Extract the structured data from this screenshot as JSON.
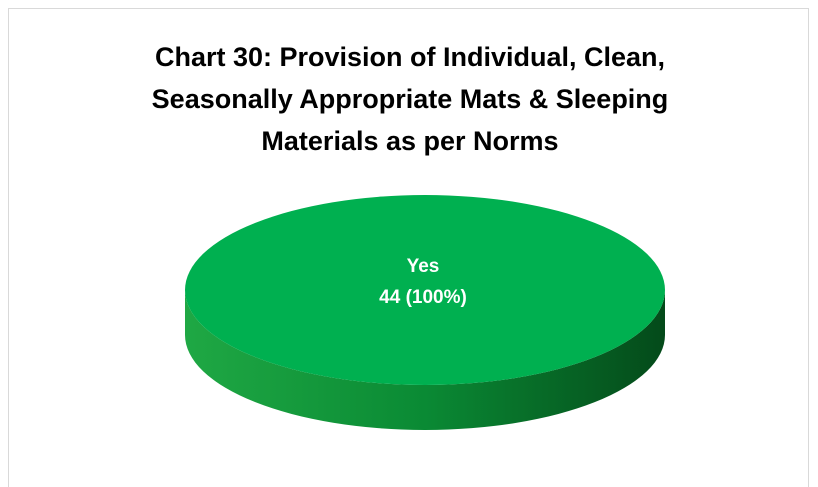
{
  "chart_data": {
    "type": "pie3d",
    "title": "Chart 30: Provision of Individual, Clean, Seasonally Appropriate Mats & Sleeping Materials as per Norms",
    "categories": [
      "Yes"
    ],
    "values": [
      44
    ],
    "value_labels": [
      "44 (100%)"
    ],
    "colors": [
      "#00b050"
    ]
  }
}
